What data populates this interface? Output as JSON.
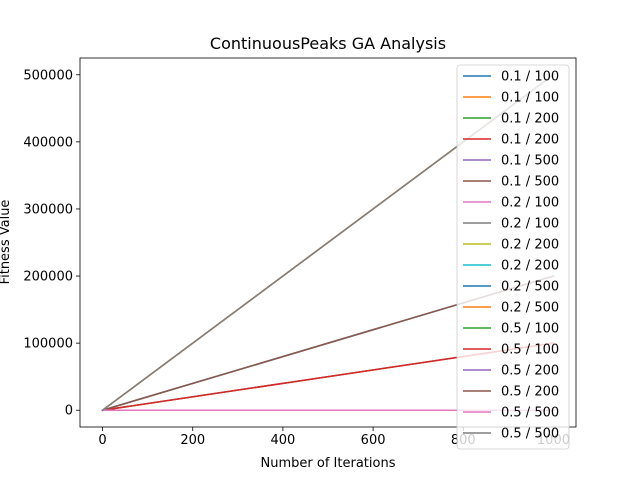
{
  "chart_data": {
    "type": "line",
    "title": "ContinuousPeaks GA Analysis",
    "xlabel": "Number of Iterations",
    "ylabel": "Fitness Value",
    "xlim": [
      -50,
      1050
    ],
    "ylim": [
      -25000,
      525000
    ],
    "xticks": [
      0,
      200,
      400,
      600,
      800,
      1000
    ],
    "xtick_labels": [
      "0",
      "200",
      "400",
      "600",
      "800",
      "1000"
    ],
    "yticks": [
      0,
      100000,
      200000,
      300000,
      400000,
      500000
    ],
    "ytick_labels": [
      "0",
      "100000",
      "200000",
      "300000",
      "400000",
      "500000"
    ],
    "grid": false,
    "legend_position": "top-right",
    "x": [
      0,
      1000
    ],
    "series": [
      {
        "name": "0.1 / 100",
        "color": "#1f77b4",
        "values": [
          0,
          0
        ]
      },
      {
        "name": "0.1 / 100",
        "color": "#ff7f0e",
        "values": [
          0,
          100000
        ]
      },
      {
        "name": "0.1 / 200",
        "color": "#2ca02c",
        "values": [
          0,
          0
        ]
      },
      {
        "name": "0.1 / 200",
        "color": "#d62728",
        "values": [
          0,
          200000
        ]
      },
      {
        "name": "0.1 / 500",
        "color": "#9467bd",
        "values": [
          0,
          0
        ]
      },
      {
        "name": "0.1 / 500",
        "color": "#8c564b",
        "values": [
          0,
          500000
        ]
      },
      {
        "name": "0.2 / 100",
        "color": "#e377c2",
        "values": [
          0,
          0
        ]
      },
      {
        "name": "0.2 / 100",
        "color": "#7f7f7f",
        "values": [
          0,
          100000
        ]
      },
      {
        "name": "0.2 / 200",
        "color": "#bcbd22",
        "values": [
          0,
          0
        ]
      },
      {
        "name": "0.2 / 200",
        "color": "#17becf",
        "values": [
          0,
          200000
        ]
      },
      {
        "name": "0.2 / 500",
        "color": "#1f77b4",
        "values": [
          0,
          0
        ]
      },
      {
        "name": "0.2 / 500",
        "color": "#ff7f0e",
        "values": [
          0,
          500000
        ]
      },
      {
        "name": "0.5 / 100",
        "color": "#2ca02c",
        "values": [
          0,
          0
        ]
      },
      {
        "name": "0.5 / 100",
        "color": "#d62728",
        "values": [
          0,
          100000
        ]
      },
      {
        "name": "0.5 / 200",
        "color": "#9467bd",
        "values": [
          0,
          0
        ]
      },
      {
        "name": "0.5 / 200",
        "color": "#8c564b",
        "values": [
          0,
          200000
        ]
      },
      {
        "name": "0.5 / 500",
        "color": "#e377c2",
        "values": [
          0,
          0
        ]
      },
      {
        "name": "0.5 / 500",
        "color": "#7f7f7f",
        "values": [
          0,
          500000
        ]
      }
    ]
  }
}
